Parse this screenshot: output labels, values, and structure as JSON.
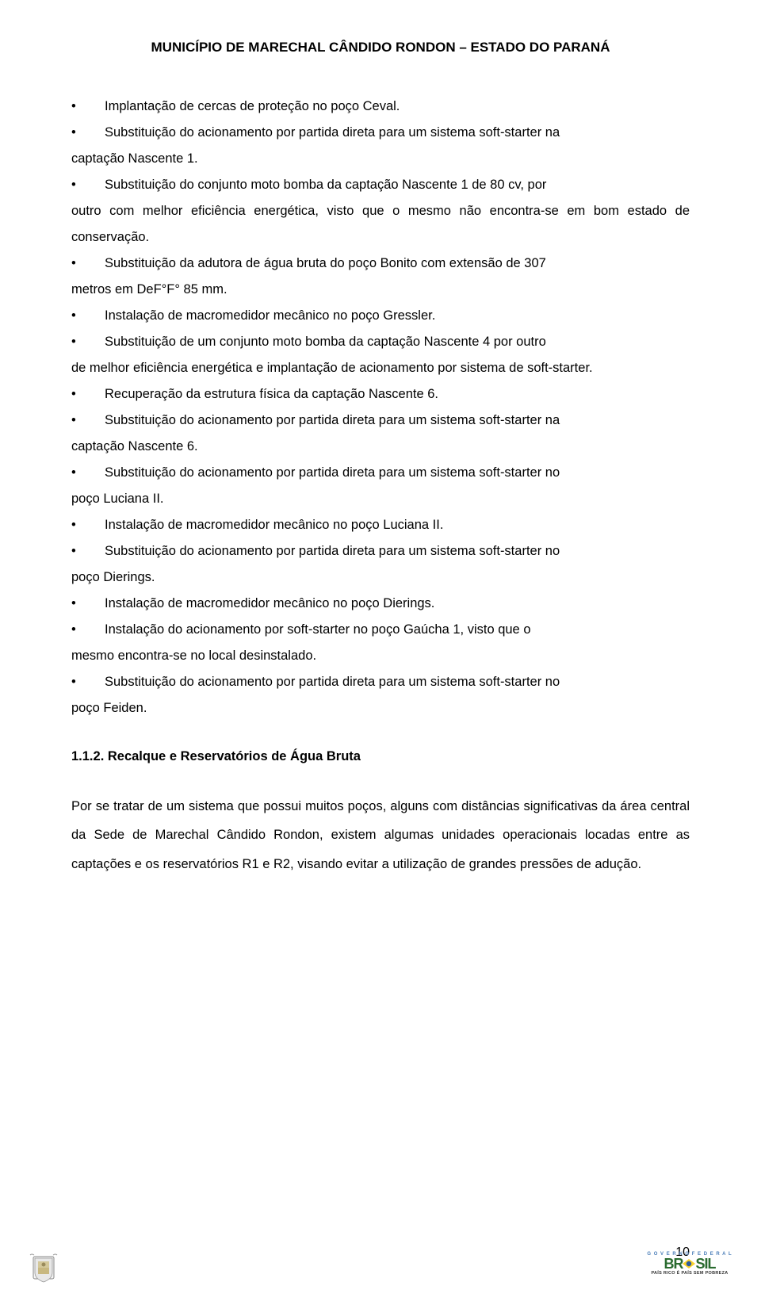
{
  "header": {
    "title": "MUNICÍPIO DE MARECHAL CÂNDIDO RONDON – ESTADO DO PARANÁ"
  },
  "bullets": [
    {
      "text": "Implantação de cercas de proteção no poço Ceval."
    },
    {
      "text": "Substituição do acionamento por partida direta para um sistema soft-starter na",
      "cont": "captação Nascente 1."
    },
    {
      "text": "Substituição do conjunto moto bomba da captação Nascente 1 de 80 cv, por",
      "cont": "outro com melhor eficiência energética, visto que o mesmo não encontra-se em bom estado de conservação."
    },
    {
      "text": "Substituição da adutora de água bruta do poço Bonito com extensão de 307",
      "cont": "metros em DeF°F° 85 mm."
    },
    {
      "text": "Instalação de macromedidor mecânico no poço Gressler."
    },
    {
      "text": "Substituição de um conjunto moto bomba da captação Nascente 4 por outro",
      "cont": "de melhor eficiência energética e implantação de acionamento por sistema de soft-starter."
    },
    {
      "text": "Recuperação da estrutura física da captação Nascente 6."
    },
    {
      "text": "Substituição do acionamento por partida direta para um sistema soft-starter na",
      "cont": "captação Nascente 6."
    },
    {
      "text": "Substituição do acionamento por partida direta para um sistema soft-starter no",
      "cont": "poço Luciana II."
    },
    {
      "text": "Instalação de macromedidor mecânico no poço Luciana II."
    },
    {
      "text": "Substituição do acionamento por partida direta para um sistema soft-starter no",
      "cont": "poço Dierings."
    },
    {
      "text": "Instalação de macromedidor mecânico no poço Dierings."
    },
    {
      "text": "Instalação do acionamento por soft-starter no poço Gaúcha 1, visto que o",
      "cont": "mesmo encontra-se no local desinstalado."
    },
    {
      "text": "Substituição do acionamento por partida direta para um sistema soft-starter no",
      "cont": "poço Feiden."
    }
  ],
  "section": {
    "heading": "1.1.2. Recalque e Reservatórios de Água Bruta",
    "paragraph": "Por se tratar de um sistema que possui muitos poços, alguns com distâncias significativas da área central da Sede de Marechal Cândido Rondon, existem algumas unidades operacionais locadas entre as captações e os reservatórios R1 e R2, visando evitar a utilização de grandes pressões de adução."
  },
  "footer": {
    "pageNumber": "10",
    "brasilTop": "G O V E R N O   F E D E R A L",
    "brasilSub": "PAÍS RICO É PAÍS SEM POBREZA"
  },
  "colors": {
    "text": "#000000",
    "background": "#ffffff",
    "brasilGreen": "#2a6b2f",
    "brasilYellow": "#f8d12a",
    "brasilBlue": "#4a7db8"
  }
}
